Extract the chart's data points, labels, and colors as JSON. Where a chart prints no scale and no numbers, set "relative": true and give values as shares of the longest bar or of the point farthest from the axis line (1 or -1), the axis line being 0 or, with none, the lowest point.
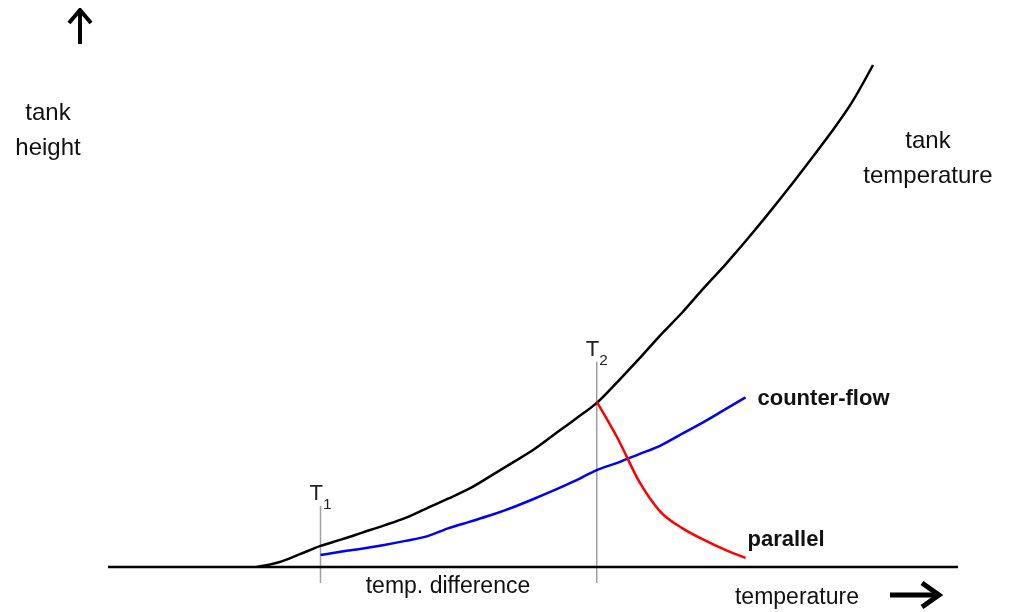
{
  "chart_data": {
    "type": "line",
    "relative": true,
    "xlabel": "temperature",
    "ylabel": "tank height",
    "annotations": [
      "temp. difference"
    ],
    "categories": [
      null,
      null,
      null,
      null,
      null,
      null,
      null,
      null,
      null,
      null,
      "T$_{1}$",
      null,
      null,
      null,
      null,
      null,
      null,
      null,
      null,
      null,
      null,
      null,
      null,
      "T$_{2}$",
      null,
      null,
      null,
      null,
      null,
      null,
      null,
      null,
      null,
      null,
      null,
      null,
      null,
      null,
      null,
      null,
      null
    ],
    "series": [
      {
        "name": "tank temperature",
        "color": "#000000",
        "values": [
          null,
          null,
          null,
          null,
          null,
          null,
          null,
          0,
          0.009,
          0.025,
          0.042,
          0.055,
          0.069,
          0.083,
          0.098,
          0.117,
          0.136,
          0.156,
          0.181,
          0.207,
          0.233,
          0.264,
          0.295,
          0.327,
          0.37,
          0.415,
          0.462,
          0.506,
          0.554,
          0.6,
          0.649,
          0.7,
          0.753,
          0.808,
          0.864,
          0.925,
          1,
          null,
          null,
          null,
          null
        ]
      },
      {
        "name": "counter-flow",
        "color": "#0000ff",
        "values": [
          null,
          null,
          null,
          null,
          null,
          null,
          null,
          null,
          null,
          null,
          0.024,
          0.031,
          0.037,
          0.044,
          0.052,
          0.061,
          0.077,
          0.09,
          0.103,
          0.118,
          0.135,
          0.153,
          0.172,
          0.193,
          0.208,
          0.225,
          0.242,
          0.265,
          0.288,
          0.313,
          0.338,
          null,
          null,
          null,
          null,
          null,
          null,
          null,
          null,
          null,
          null
        ]
      },
      {
        "name": "parallel",
        "color": "#ff0000",
        "values": [
          null,
          null,
          null,
          null,
          null,
          null,
          null,
          null,
          null,
          null,
          null,
          null,
          null,
          null,
          null,
          null,
          null,
          null,
          null,
          null,
          null,
          null,
          null,
          0.329,
          0.255,
          0.17,
          0.11,
          0.078,
          0.055,
          0.035,
          0.018,
          null,
          null,
          null,
          null,
          null,
          null,
          null,
          null,
          null,
          null
        ]
      }
    ],
    "ref_lines": [
      {
        "axis": "x",
        "value": "T$_{1}$",
        "color": "#a0a0a0"
      },
      {
        "axis": "x",
        "value": "T$_{2}$",
        "color": "#a0a0a0"
      }
    ]
  }
}
